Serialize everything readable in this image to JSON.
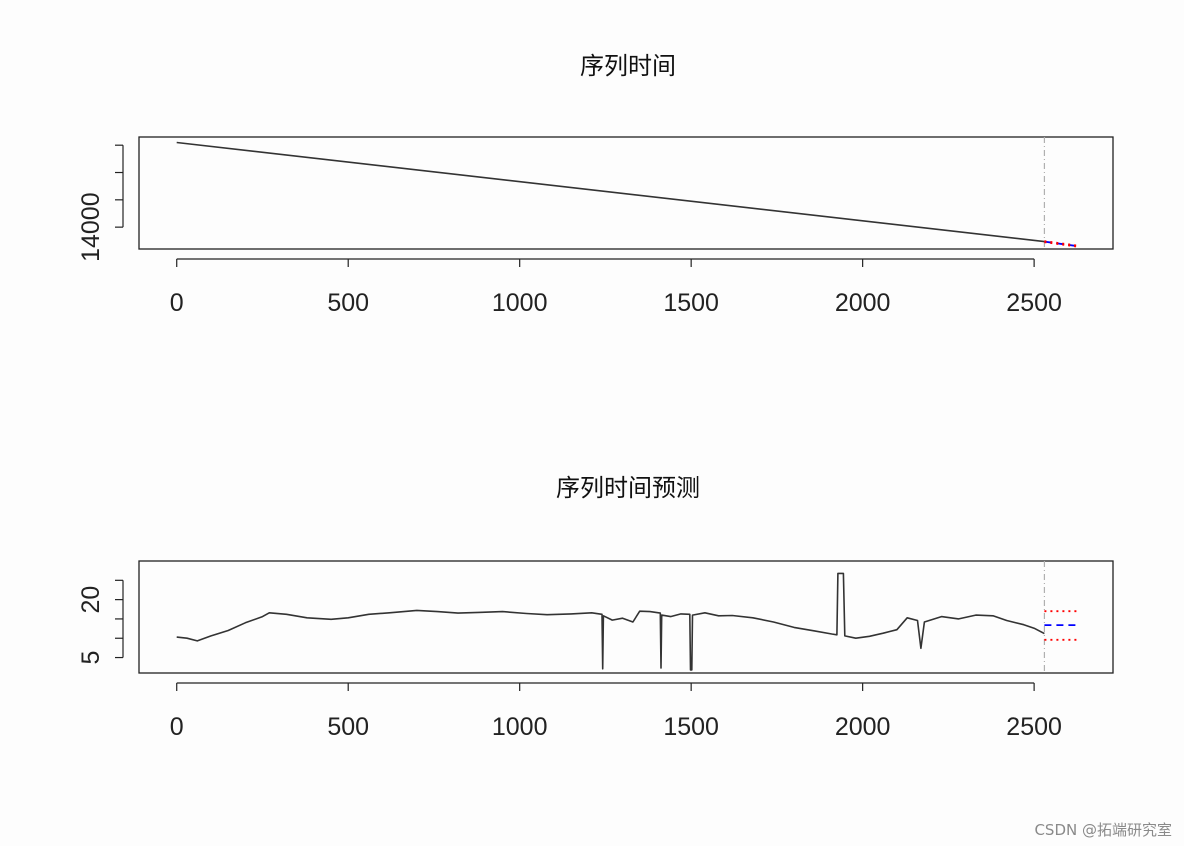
{
  "watermark": "CSDN @拓端研究室",
  "chart_data": [
    {
      "type": "line",
      "title": "序列时间",
      "xlabel": "",
      "ylabel": "",
      "xlim": [
        -110,
        2730
      ],
      "ylim": [
        13200,
        17300
      ],
      "x_ticks": [
        0,
        500,
        1000,
        1500,
        2000,
        2500
      ],
      "x_tick_labels": [
        "0",
        "500",
        "1000",
        "1500",
        "2000",
        "2500"
      ],
      "y_ticks": [
        14000,
        15000,
        16000,
        17000
      ],
      "y_tick_labels": [
        "14000",
        "",
        "",
        ""
      ],
      "series": [
        {
          "role": "observed",
          "color": "#333333",
          "points": [
            [
              0,
              17100
            ],
            [
              2530,
              13470
            ]
          ]
        },
        {
          "role": "forecast",
          "color": "#0000ff",
          "points": [
            [
              2530,
              13470
            ],
            [
              2630,
              13300
            ]
          ]
        },
        {
          "role": "interval_upper",
          "color": "#ff0000",
          "points": [
            [
              2530,
              13490
            ],
            [
              2630,
              13320
            ]
          ]
        },
        {
          "role": "interval_lower",
          "color": "#ff0000",
          "points": [
            [
              2530,
              13450
            ],
            [
              2630,
              13280
            ]
          ]
        }
      ],
      "vline": {
        "x": 2530,
        "color": "#b0b0b0"
      }
    },
    {
      "type": "line",
      "title": "序列时间预测",
      "xlabel": "",
      "ylabel": "",
      "xlim": [
        -110,
        2730
      ],
      "ylim": [
        1,
        30
      ],
      "x_ticks": [
        0,
        500,
        1000,
        1500,
        2000,
        2500
      ],
      "x_tick_labels": [
        "0",
        "500",
        "1000",
        "1500",
        "2000",
        "2500"
      ],
      "y_ticks": [
        5,
        10,
        15,
        20,
        25
      ],
      "y_tick_labels": [
        "5",
        "",
        "",
        "20",
        ""
      ],
      "series": [
        {
          "role": "observed",
          "color": "#333333",
          "points": [
            [
              0,
              10.3
            ],
            [
              30,
              10.0
            ],
            [
              60,
              9.3
            ],
            [
              100,
              10.6
            ],
            [
              150,
              12.0
            ],
            [
              200,
              14.0
            ],
            [
              250,
              15.6
            ],
            [
              270,
              16.6
            ],
            [
              320,
              16.2
            ],
            [
              380,
              15.3
            ],
            [
              450,
              14.9
            ],
            [
              500,
              15.3
            ],
            [
              560,
              16.2
            ],
            [
              620,
              16.6
            ],
            [
              700,
              17.2
            ],
            [
              760,
              16.9
            ],
            [
              820,
              16.5
            ],
            [
              880,
              16.7
            ],
            [
              950,
              16.9
            ],
            [
              1020,
              16.4
            ],
            [
              1080,
              16.1
            ],
            [
              1150,
              16.3
            ],
            [
              1210,
              16.6
            ],
            [
              1240,
              16.2
            ],
            [
              1242,
              2.1
            ],
            [
              1244,
              15.8
            ],
            [
              1270,
              14.7
            ],
            [
              1300,
              15.2
            ],
            [
              1330,
              14.2
            ],
            [
              1350,
              17.0
            ],
            [
              1380,
              16.9
            ],
            [
              1410,
              16.5
            ],
            [
              1412,
              2.3
            ],
            [
              1414,
              16.0
            ],
            [
              1440,
              15.6
            ],
            [
              1470,
              16.3
            ],
            [
              1496,
              16.2
            ],
            [
              1498,
              1.8
            ],
            [
              1502,
              1.8
            ],
            [
              1504,
              16.0
            ],
            [
              1540,
              16.6
            ],
            [
              1580,
              15.8
            ],
            [
              1620,
              15.9
            ],
            [
              1680,
              15.3
            ],
            [
              1740,
              14.2
            ],
            [
              1800,
              12.8
            ],
            [
              1860,
              11.9
            ],
            [
              1910,
              11.1
            ],
            [
              1925,
              10.9
            ],
            [
              1928,
              26.8
            ],
            [
              1944,
              26.8
            ],
            [
              1948,
              10.6
            ],
            [
              1980,
              10.0
            ],
            [
              2020,
              10.5
            ],
            [
              2060,
              11.3
            ],
            [
              2100,
              12.2
            ],
            [
              2130,
              15.3
            ],
            [
              2160,
              14.6
            ],
            [
              2170,
              7.4
            ],
            [
              2180,
              14.2
            ],
            [
              2230,
              15.6
            ],
            [
              2280,
              15.0
            ],
            [
              2330,
              16.0
            ],
            [
              2380,
              15.8
            ],
            [
              2420,
              14.6
            ],
            [
              2470,
              13.5
            ],
            [
              2500,
              12.6
            ],
            [
              2530,
              11.2
            ]
          ]
        },
        {
          "role": "forecast",
          "color": "#0000ff",
          "points": [
            [
              2530,
              13.4
            ],
            [
              2630,
              13.4
            ]
          ]
        },
        {
          "role": "interval_upper",
          "color": "#ff0000",
          "points": [
            [
              2530,
              17.0
            ],
            [
              2630,
              17.0
            ]
          ]
        },
        {
          "role": "interval_lower",
          "color": "#ff0000",
          "points": [
            [
              2530,
              9.6
            ],
            [
              2630,
              9.6
            ]
          ]
        }
      ],
      "vline": {
        "x": 2530,
        "color": "#b0b0b0"
      }
    }
  ]
}
